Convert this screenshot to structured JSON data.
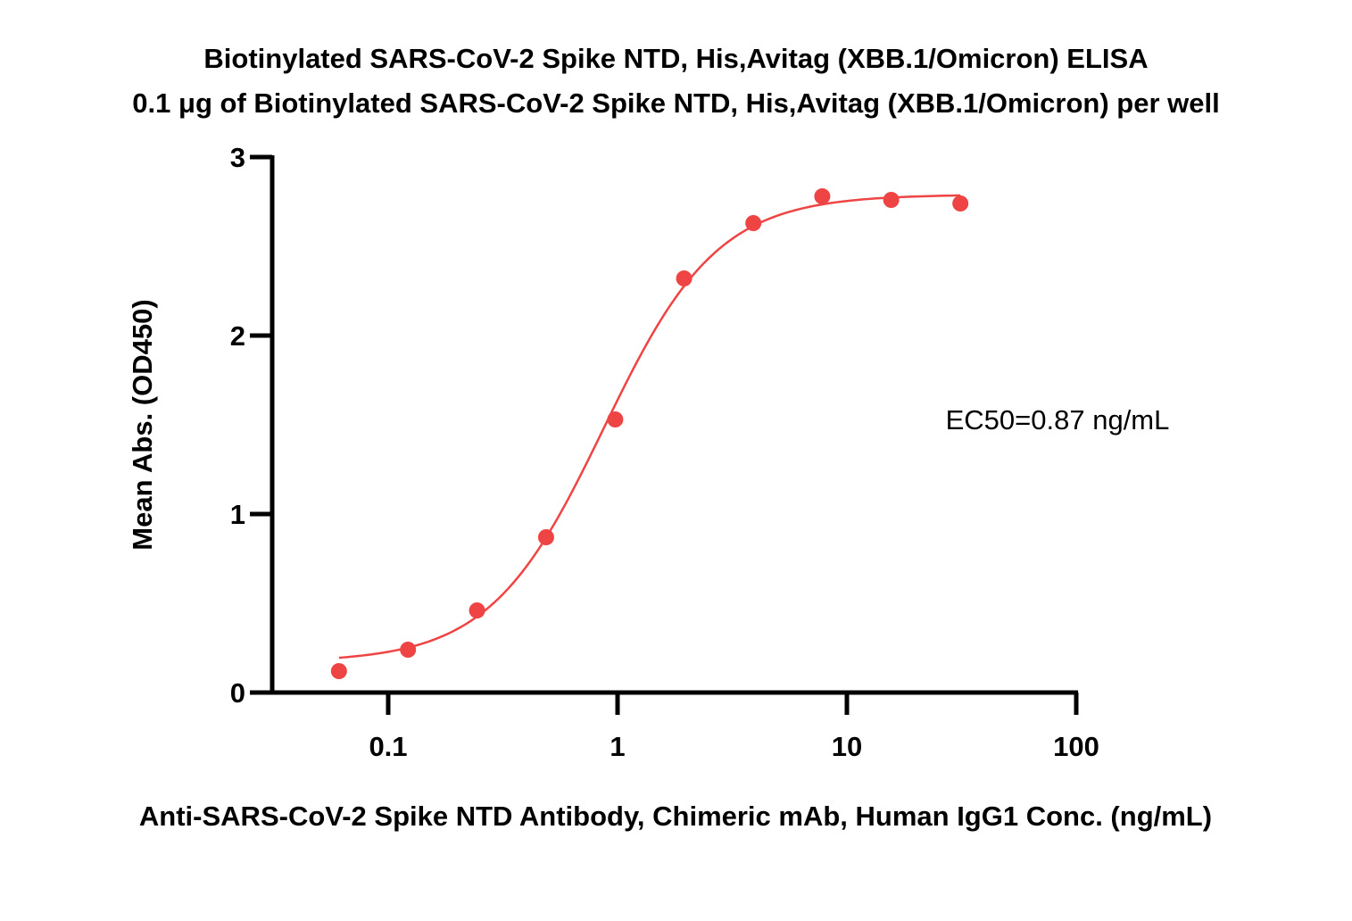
{
  "chart_data": {
    "type": "scatter",
    "title": "Biotinylated SARS-CoV-2 Spike NTD, His,Avitag (XBB.1/Omicron) ELISA",
    "subtitle": "0.1 μg of Biotinylated SARS-CoV-2 Spike NTD, His,Avitag (XBB.1/Omicron) per well",
    "xlabel": "Anti-SARS-CoV-2 Spike NTD Antibody, Chimeric mAb, Human IgG1 Conc. (ng/mL)",
    "ylabel": "Mean Abs. (OD450)",
    "x_scale": "log",
    "xlim": [
      0.03,
      100
    ],
    "ylim": [
      0,
      3
    ],
    "x_ticks": [
      "0.1",
      "1",
      "10",
      "100"
    ],
    "x_tick_values": [
      0.1,
      1,
      10,
      100
    ],
    "y_ticks": [
      "0",
      "1",
      "2",
      "3"
    ],
    "y_tick_values": [
      0,
      1,
      2,
      3
    ],
    "grid": false,
    "annotation": "EC50=0.87 ng/mL",
    "series": [
      {
        "color": "#ef4444",
        "x": [
          0.061,
          0.122,
          0.244,
          0.488,
          0.977,
          1.95,
          3.91,
          7.81,
          15.6,
          31.25
        ],
        "y": [
          0.12,
          0.24,
          0.46,
          0.87,
          1.53,
          2.32,
          2.63,
          2.78,
          2.76,
          2.74
        ]
      }
    ],
    "fit_curve": {
      "color": "#ef4444",
      "bottom": 0.17,
      "top": 2.79,
      "ec50": 0.87,
      "hill": 1.75
    }
  }
}
